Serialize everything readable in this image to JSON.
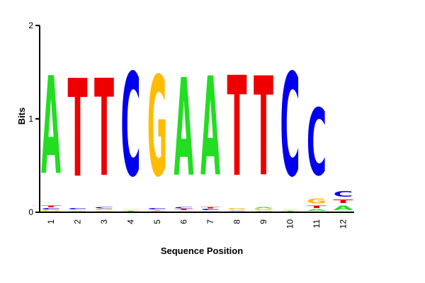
{
  "chart_data": {
    "type": "sequence-logo",
    "xlabel": "Sequence Position",
    "ylabel": "Bits",
    "ylim": [
      0,
      2
    ],
    "y_ticks": [
      "0",
      "1",
      "2"
    ],
    "colors": {
      "A": "#22dd22",
      "C": "#0000ee",
      "G": "#ffbb00",
      "T": "#ee0000"
    },
    "positions": [
      {
        "label": "1",
        "letters": [
          {
            "letter": "G",
            "bits": 0.02
          },
          {
            "letter": "C",
            "bits": 0.02
          },
          {
            "letter": "T",
            "bits": 0.03
          },
          {
            "letter": "A",
            "bits": 1.68
          }
        ]
      },
      {
        "label": "2",
        "letters": [
          {
            "letter": "A",
            "bits": 0.01
          },
          {
            "letter": "G",
            "bits": 0.01
          },
          {
            "letter": "C",
            "bits": 0.02
          },
          {
            "letter": "T",
            "bits": 1.68
          }
        ]
      },
      {
        "label": "3",
        "letters": [
          {
            "letter": "A",
            "bits": 0.01
          },
          {
            "letter": "G",
            "bits": 0.02
          },
          {
            "letter": "C",
            "bits": 0.02
          },
          {
            "letter": "T",
            "bits": 1.67
          }
        ]
      },
      {
        "label": "4",
        "letters": [
          {
            "letter": "T",
            "bits": 0.01
          },
          {
            "letter": "A",
            "bits": 0.01
          },
          {
            "letter": "G",
            "bits": 0.01
          },
          {
            "letter": "C",
            "bits": 1.77
          }
        ]
      },
      {
        "label": "5",
        "letters": [
          {
            "letter": "A",
            "bits": 0.01
          },
          {
            "letter": "T",
            "bits": 0.01
          },
          {
            "letter": "C",
            "bits": 0.02
          },
          {
            "letter": "G",
            "bits": 1.72
          }
        ]
      },
      {
        "label": "6",
        "letters": [
          {
            "letter": "G",
            "bits": 0.01
          },
          {
            "letter": "T",
            "bits": 0.02
          },
          {
            "letter": "C",
            "bits": 0.02
          },
          {
            "letter": "A",
            "bits": 1.68
          }
        ]
      },
      {
        "label": "7",
        "letters": [
          {
            "letter": "G",
            "bits": 0.01
          },
          {
            "letter": "C",
            "bits": 0.02
          },
          {
            "letter": "T",
            "bits": 0.02
          },
          {
            "letter": "A",
            "bits": 1.7
          }
        ]
      },
      {
        "label": "8",
        "letters": [
          {
            "letter": "A",
            "bits": 0.01
          },
          {
            "letter": "C",
            "bits": 0.01
          },
          {
            "letter": "G",
            "bits": 0.02
          },
          {
            "letter": "T",
            "bits": 1.72
          }
        ]
      },
      {
        "label": "9",
        "letters": [
          {
            "letter": "C",
            "bits": 0.01
          },
          {
            "letter": "G",
            "bits": 0.02
          },
          {
            "letter": "A",
            "bits": 0.02
          },
          {
            "letter": "T",
            "bits": 1.7
          }
        ]
      },
      {
        "label": "10",
        "letters": [
          {
            "letter": "T",
            "bits": 0.01
          },
          {
            "letter": "A",
            "bits": 0.01
          },
          {
            "letter": "G",
            "bits": 0.01
          },
          {
            "letter": "C",
            "bits": 1.77
          }
        ]
      },
      {
        "label": "11",
        "letters": [
          {
            "letter": "A",
            "bits": 0.03
          },
          {
            "letter": "T",
            "bits": 0.04
          },
          {
            "letter": "G",
            "bits": 0.09
          },
          {
            "letter": "C",
            "bits": 1.15
          }
        ]
      },
      {
        "label": "12",
        "letters": [
          {
            "letter": "A",
            "bits": 0.08
          },
          {
            "letter": "T",
            "bits": 0.06
          },
          {
            "letter": "C",
            "bits": 0.09
          }
        ]
      }
    ]
  }
}
